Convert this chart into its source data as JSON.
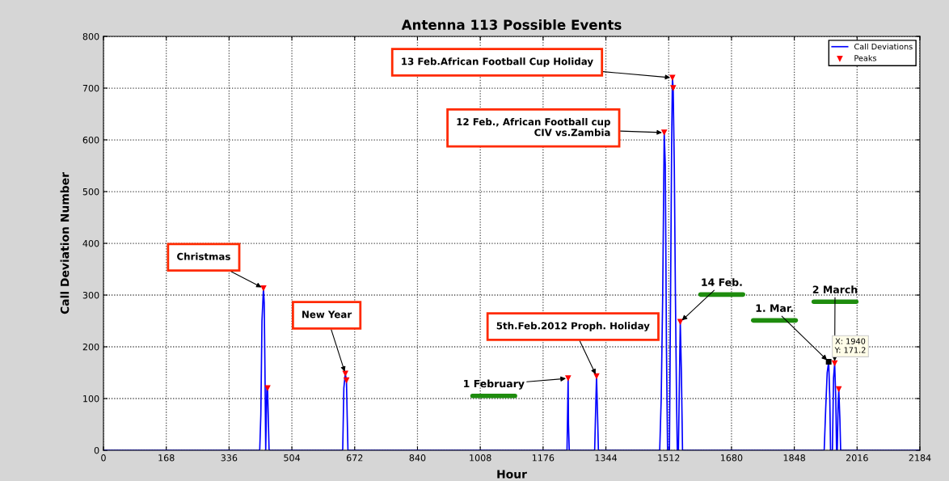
{
  "chart_data": {
    "type": "line",
    "title": "Antenna 113 Possible Events",
    "xlabel": "Hour",
    "ylabel": "Call Deviation Number",
    "series": [
      {
        "name": "Call Deviations",
        "type": "line",
        "color": "#0000ff",
        "x": [
          0,
          418,
          421,
          424,
          428,
          430,
          432,
          434,
          437,
          439,
          441,
          443,
          640,
          643,
          645,
          647,
          650,
          652,
          654,
          1240,
          1243,
          1244,
          1246,
          1314,
          1316,
          1319,
          1322,
          1324,
          1488,
          1492,
          1496,
          1500,
          1503,
          1506,
          1509,
          1514,
          1517,
          1520,
          1522,
          1524,
          1527,
          1530,
          1533,
          1535,
          1538,
          1541,
          1543,
          1546,
          1549,
          1928,
          1932,
          1936,
          1940,
          1943,
          1945,
          1950,
          1953,
          1956,
          1959,
          1961,
          1963,
          1965,
          1967,
          1970,
          1972,
          2184
        ],
        "values": [
          0,
          0,
          70,
          250,
          313,
          285,
          155,
          0,
          120,
          120,
          60,
          0,
          0,
          120,
          135,
          148,
          135,
          65,
          0,
          0,
          139,
          50,
          0,
          0,
          60,
          143,
          60,
          0,
          0,
          100,
          300,
          614,
          550,
          200,
          0,
          0,
          300,
          600,
          720,
          700,
          550,
          300,
          100,
          0,
          0,
          150,
          248,
          150,
          0,
          0,
          80,
          150,
          171.2,
          100,
          0,
          0,
          140,
          168,
          100,
          0,
          0,
          80,
          118,
          60,
          0,
          0
        ]
      },
      {
        "name": "Peaks",
        "type": "scatter",
        "color": "#ff0000",
        "marker": "triangle",
        "x": [
          428,
          439,
          647,
          650,
          1243,
          1319,
          1500,
          1522,
          1524,
          1543,
          1956,
          1967
        ],
        "values": [
          313,
          120,
          148,
          135,
          139,
          143,
          614,
          720,
          700,
          248,
          168,
          118
        ]
      }
    ],
    "xlim": [
      0,
      2184
    ],
    "xticks": [
      0,
      168,
      336,
      504,
      672,
      840,
      1008,
      1176,
      1344,
      1512,
      1680,
      1848,
      2016,
      2184
    ],
    "ylim": [
      0,
      800
    ],
    "yticks": [
      0,
      100,
      200,
      300,
      400,
      500,
      600,
      700,
      800
    ],
    "grid": true,
    "legend": "top right",
    "annotations": [
      {
        "text": "Christmas",
        "x": 428,
        "y": 313
      },
      {
        "text": "New Year",
        "x": 647,
        "y": 148
      },
      {
        "text": "1 February",
        "x": 1243,
        "y": 139
      },
      {
        "text": "5th.Feb.2012 Proph. Holiday",
        "x": 1319,
        "y": 143
      },
      {
        "text": "12 Feb., African Football cup\nCIV vs.Zambia",
        "x": 1500,
        "y": 614
      },
      {
        "text": "13 Feb.African Football Cup Holiday",
        "x": 1522,
        "y": 720
      },
      {
        "text": "14 Feb.",
        "x": 1543,
        "y": 248
      },
      {
        "text": "1. Mar.",
        "x": 1940,
        "y": 171.2
      },
      {
        "text": "2 March",
        "x": 1956,
        "y": 168
      },
      {
        "text": "X: 1940\nY: 171.2",
        "x": 1940,
        "y": 171.2
      }
    ]
  }
}
